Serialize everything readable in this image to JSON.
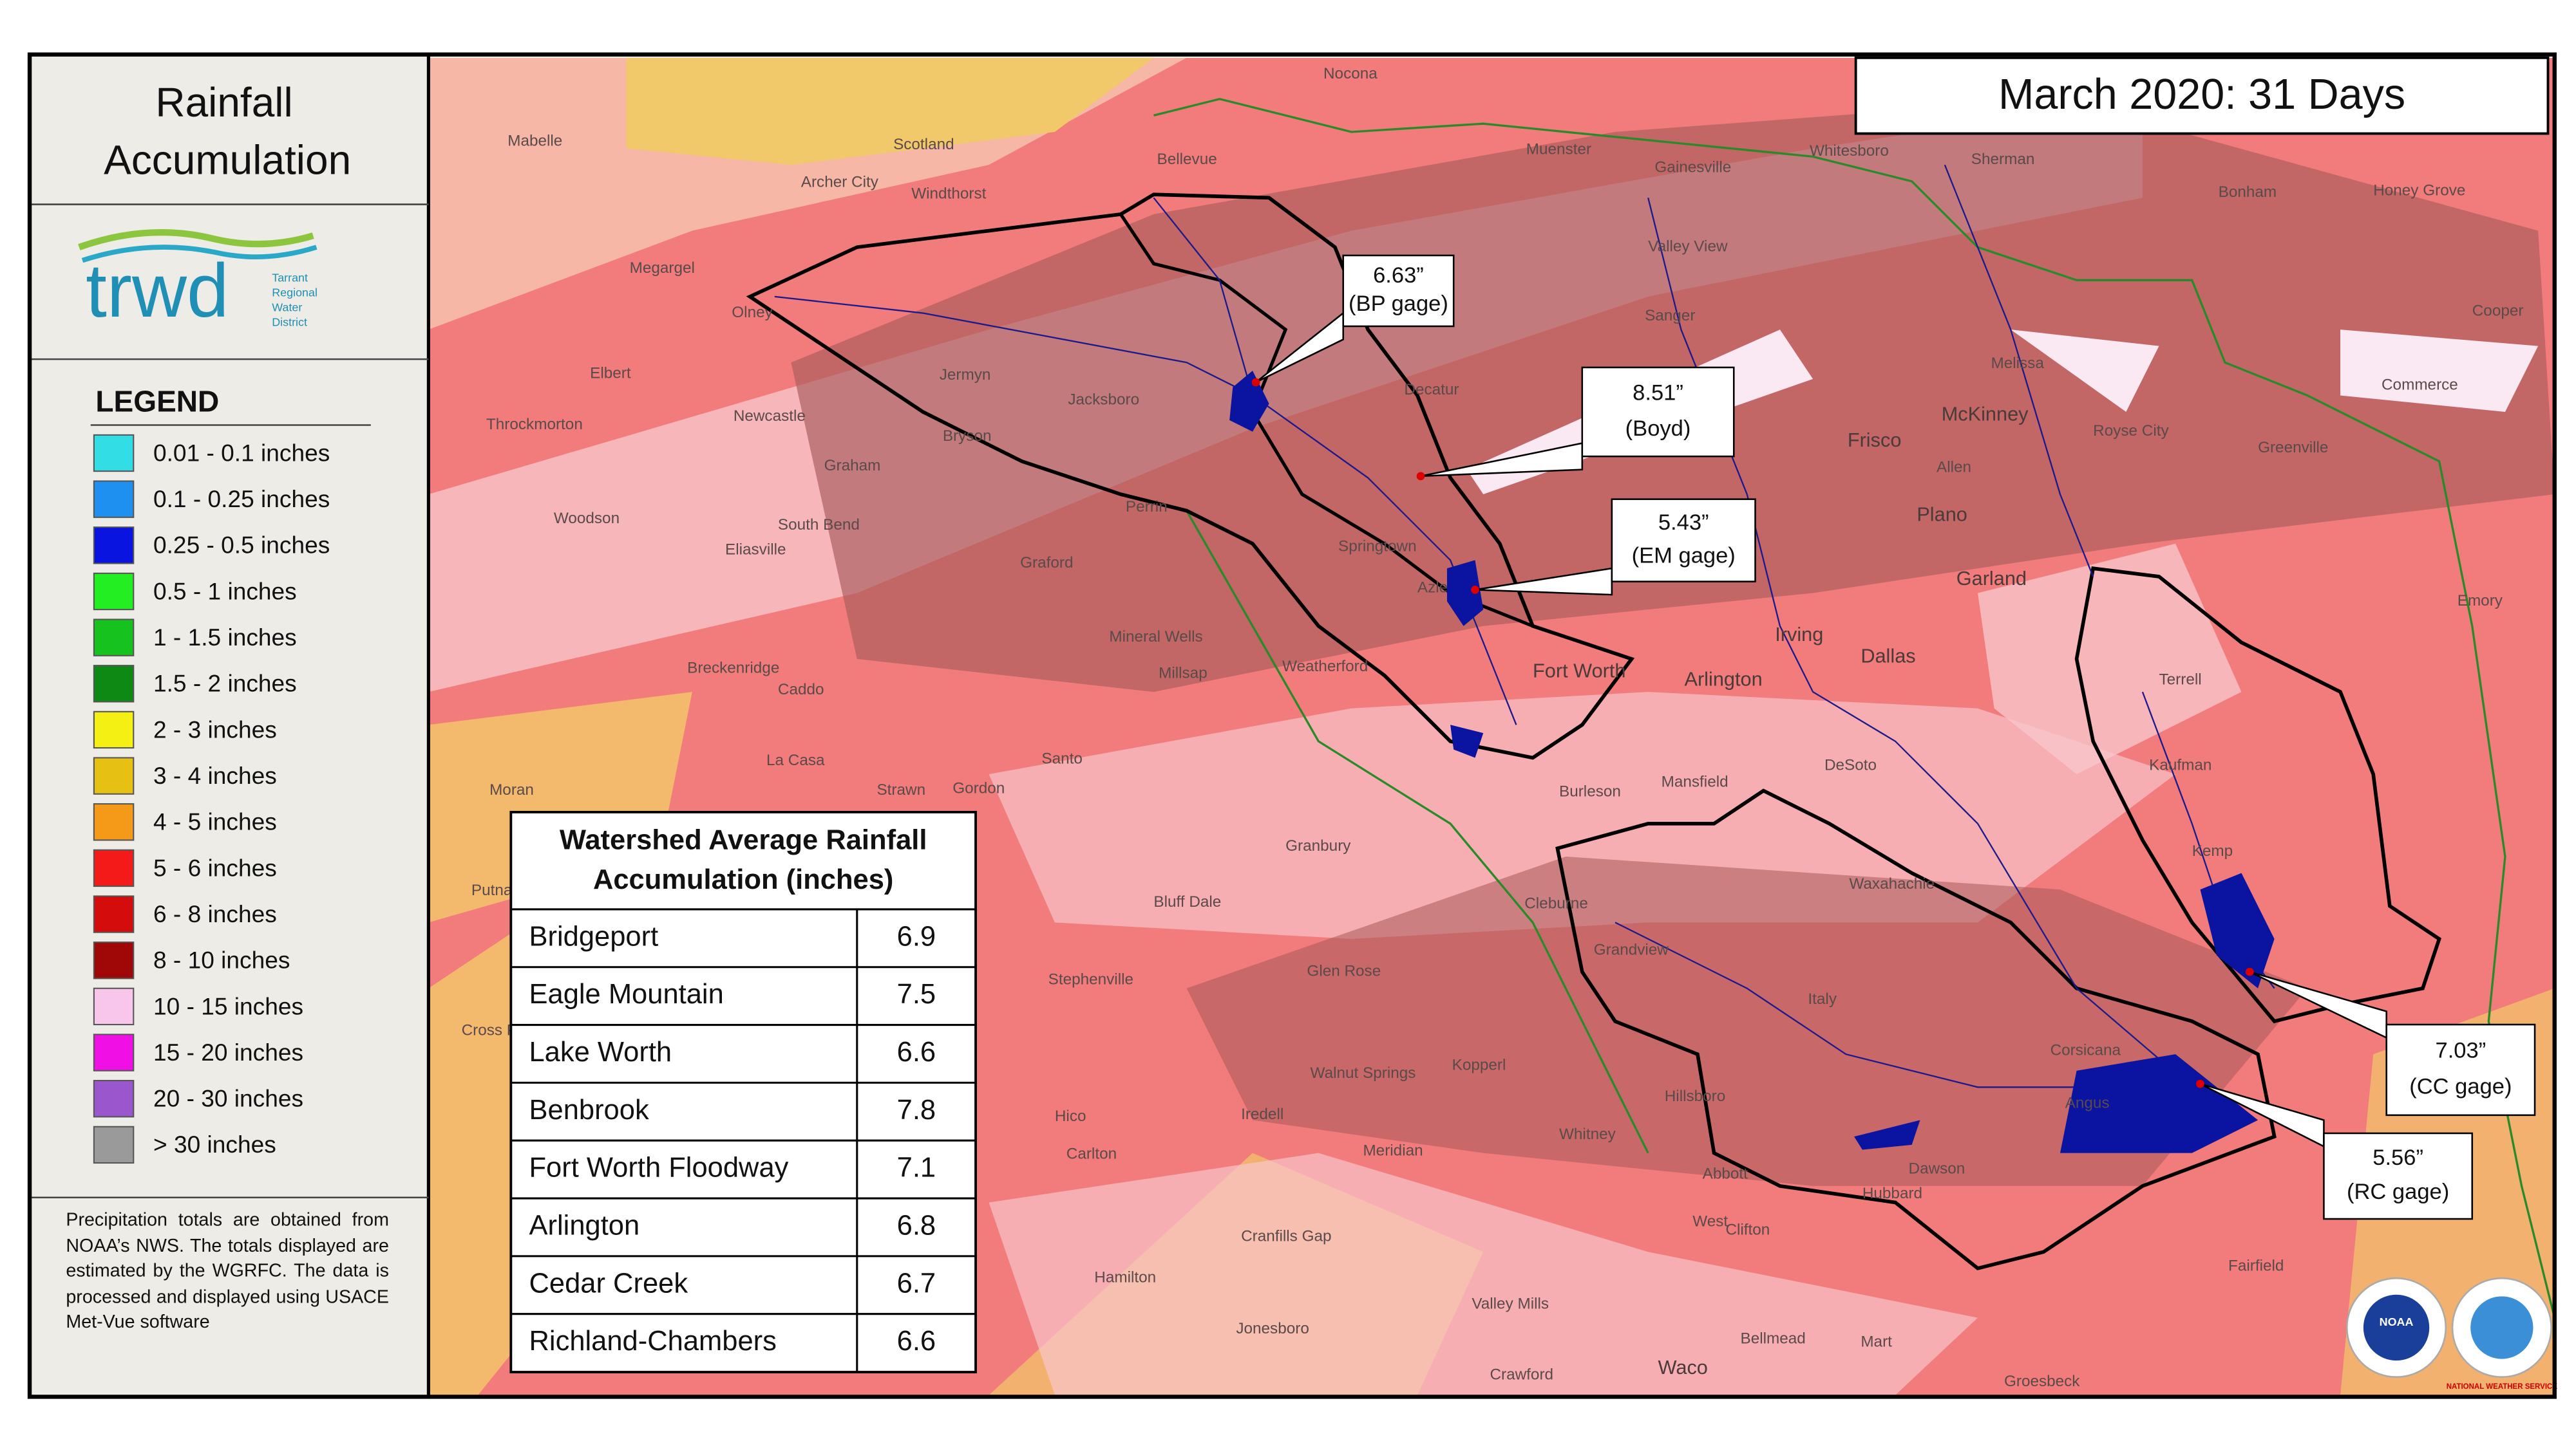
{
  "sidebar": {
    "title_lines": [
      "Rainfall",
      "Accumulation"
    ],
    "logo": {
      "text": "trwd",
      "subtitle_lines": [
        "Tarrant",
        "Regional",
        "Water",
        "District"
      ]
    },
    "legend": {
      "title": "LEGEND",
      "items": [
        {
          "label": "0.01 - 0.1 inches",
          "color": "#33dde6"
        },
        {
          "label": "0.1 - 0.25 inches",
          "color": "#1e90f0"
        },
        {
          "label": "0.25 - 0.5 inches",
          "color": "#0a14e0"
        },
        {
          "label": "0.5 - 1 inches",
          "color": "#22ee22"
        },
        {
          "label": "1 - 1.5 inches",
          "color": "#16c21e"
        },
        {
          "label": "1.5 - 2 inches",
          "color": "#0c8a14"
        },
        {
          "label": "2 - 3 inches",
          "color": "#f5f014"
        },
        {
          "label": "3 - 4 inches",
          "color": "#e6c012"
        },
        {
          "label": "4 - 5 inches",
          "color": "#f59a18"
        },
        {
          "label": "5 - 6 inches",
          "color": "#f51a1a"
        },
        {
          "label": "6 - 8 inches",
          "color": "#d40c0c"
        },
        {
          "label": "8 - 10 inches",
          "color": "#a00808"
        },
        {
          "label": "10 - 15 inches",
          "color": "#f8c6ea"
        },
        {
          "label": "15 - 20 inches",
          "color": "#f010e6"
        },
        {
          "label": "20 - 30 inches",
          "color": "#9a56cc"
        },
        {
          "label": "> 30 inches",
          "color": "#9a9a9a"
        }
      ]
    },
    "note": "Precipitation totals are obtained from NOAA’s NWS. The totals displayed are estimated by the WGRFC. The data is processed and displayed using USACE Met-Vue software"
  },
  "header": {
    "title": "March 2020: 31 Days"
  },
  "table": {
    "title_lines": [
      "Watershed Average Rainfall",
      "Accumulation (inches)"
    ],
    "rows": [
      [
        "Bridgeport",
        6.9
      ],
      [
        "Eagle Mountain",
        7.5
      ],
      [
        "Lake Worth",
        6.6
      ],
      [
        "Benbrook",
        7.8
      ],
      [
        "Fort Worth Floodway",
        7.1
      ],
      [
        "Arlington",
        6.8
      ],
      [
        "Cedar Creek",
        6.7
      ],
      [
        "Richland-Chambers",
        6.6
      ]
    ]
  },
  "callouts": [
    {
      "value": "6.63”",
      "gage": "(BP gage)"
    },
    {
      "value": "8.51”",
      "gage": "(Boyd)"
    },
    {
      "value": "5.43”",
      "gage": "(EM gage)"
    },
    {
      "value": "7.03”",
      "gage": "(CC gage)"
    },
    {
      "value": "5.56”",
      "gage": "(RC gage)"
    }
  ],
  "logos": {
    "noaa": "NOAA",
    "nws": "NATIONAL WEATHER SERVICE"
  },
  "map": {
    "places": [
      "Mabelle",
      "Archer City",
      "Scotland",
      "Windthorst",
      "Bellevue",
      "Nocona",
      "Muenster",
      "Gainesville",
      "Whitesboro",
      "Sherman",
      "Bonham",
      "Honey Grove",
      "Cooper",
      "Megargel",
      "Olney",
      "Valley View",
      "Sanger",
      "Jacksboro",
      "Bryson",
      "Jermyn",
      "Elbert",
      "Newcastle",
      "Graham",
      "Throckmorton",
      "Woodson",
      "South Bend",
      "Eliasville",
      "Graford",
      "Perrin",
      "Mineral Wells",
      "Millsap",
      "Breckenridge",
      "Caddo",
      "Weatherford",
      "Fort Worth",
      "Arlington",
      "Irving",
      "Dallas",
      "Frisco",
      "McKinney",
      "Allen",
      "Plano",
      "Garland",
      "Melissa",
      "Greenville",
      "Commerce",
      "Royse City",
      "Emory",
      "Terrell",
      "Kaufman",
      "Kemp",
      "DeSoto",
      "Mansfield",
      "Burleson",
      "La Casa",
      "Strawn",
      "Gordon",
      "Santo",
      "Moran",
      "Putnam",
      "Granbury",
      "Bluff Dale",
      "Stephenville",
      "Glen Rose",
      "Cleburne",
      "Grandview",
      "Waxahachie",
      "Italy",
      "Corsicana",
      "Angus",
      "Hillsboro",
      "Kopperl",
      "Walnut Springs",
      "Iredell",
      "Hico",
      "Carlton",
      "Meridian",
      "Whitney",
      "Clifton",
      "Cranfills Gap",
      "Hamilton",
      "Valley Mills",
      "Jonesboro",
      "Crawford",
      "Waco",
      "Bellmead",
      "Mart",
      "Groesbeck",
      "Abbott",
      "West",
      "Hubbard",
      "Dawson",
      "Fairfield",
      "Decatur",
      "Springtown",
      "Azle",
      "Cross Plains"
    ]
  }
}
